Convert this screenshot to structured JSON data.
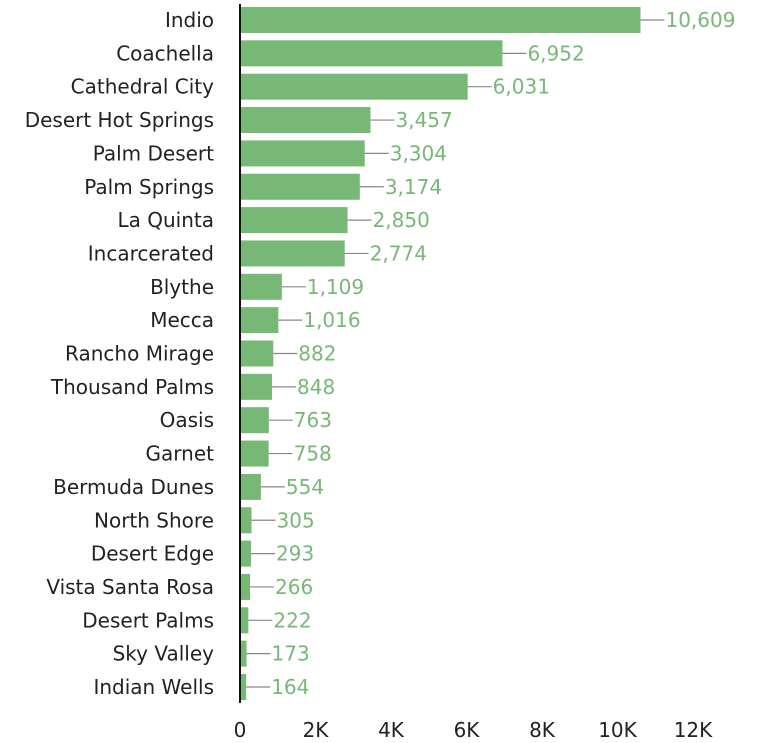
{
  "chart_data": {
    "type": "hbar",
    "categories": [
      "Indio",
      "Coachella",
      "Cathedral City",
      "Desert Hot Springs",
      "Palm Desert",
      "Palm Springs",
      "La Quinta",
      "Incarcerated",
      "Blythe",
      "Mecca",
      "Rancho Mirage",
      "Thousand Palms",
      "Oasis",
      "Garnet",
      "Bermuda Dunes",
      "North Shore",
      "Desert Edge",
      "Vista Santa Rosa",
      "Desert Palms",
      "Sky Valley",
      "Indian Wells"
    ],
    "values": [
      10609,
      6952,
      6031,
      3457,
      3304,
      3174,
      2850,
      2774,
      1109,
      1016,
      882,
      848,
      763,
      758,
      554,
      305,
      293,
      266,
      222,
      173,
      164
    ],
    "value_labels": [
      "10,609",
      "6,952",
      "6,031",
      "3,457",
      "3,304",
      "3,174",
      "2,850",
      "2,774",
      "1,109",
      "1,016",
      "882",
      "848",
      "763",
      "758",
      "554",
      "305",
      "293",
      "266",
      "222",
      "173",
      "164"
    ],
    "color": "#77b877",
    "xlim": [
      0,
      12000
    ],
    "xticks": [
      0,
      {
        "value": 2000,
        "label": "2K"
      },
      {
        "value": 4000,
        "label": "4K"
      },
      {
        "value": 6000,
        "label": "6K"
      },
      {
        "value": 8000,
        "label": "8K"
      },
      {
        "value": 10000,
        "label": "10K"
      },
      {
        "value": 12000,
        "label": "12K"
      }
    ]
  }
}
